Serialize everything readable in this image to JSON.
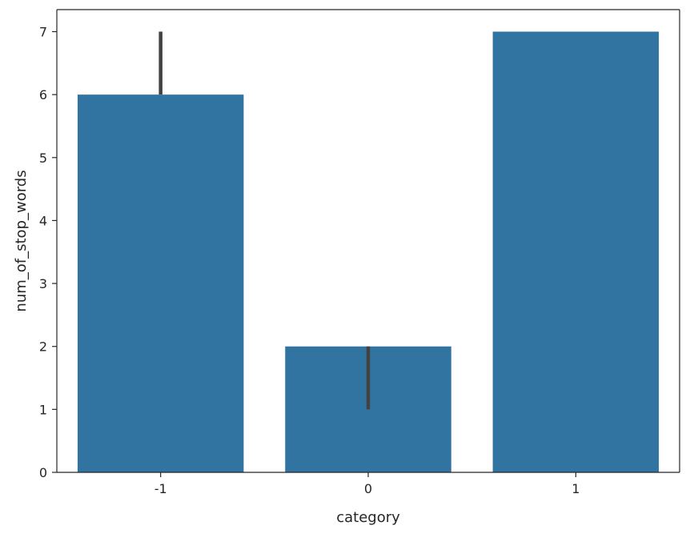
{
  "chart_data": {
    "type": "bar",
    "categories": [
      "-1",
      "0",
      "1"
    ],
    "values": [
      6,
      2,
      7
    ],
    "error_bars": [
      {
        "low": 6,
        "high": 7
      },
      {
        "low": 1,
        "high": 2
      },
      {
        "low": 7,
        "high": 7
      }
    ],
    "xlabel": "category",
    "ylabel": "num_of_stop_words",
    "ylim": [
      0,
      7.35
    ],
    "yticks": [
      0,
      1,
      2,
      3,
      4,
      5,
      6,
      7
    ],
    "bar_color": "#3274a1",
    "error_color": "#424242",
    "grid": false,
    "legend": "none"
  }
}
